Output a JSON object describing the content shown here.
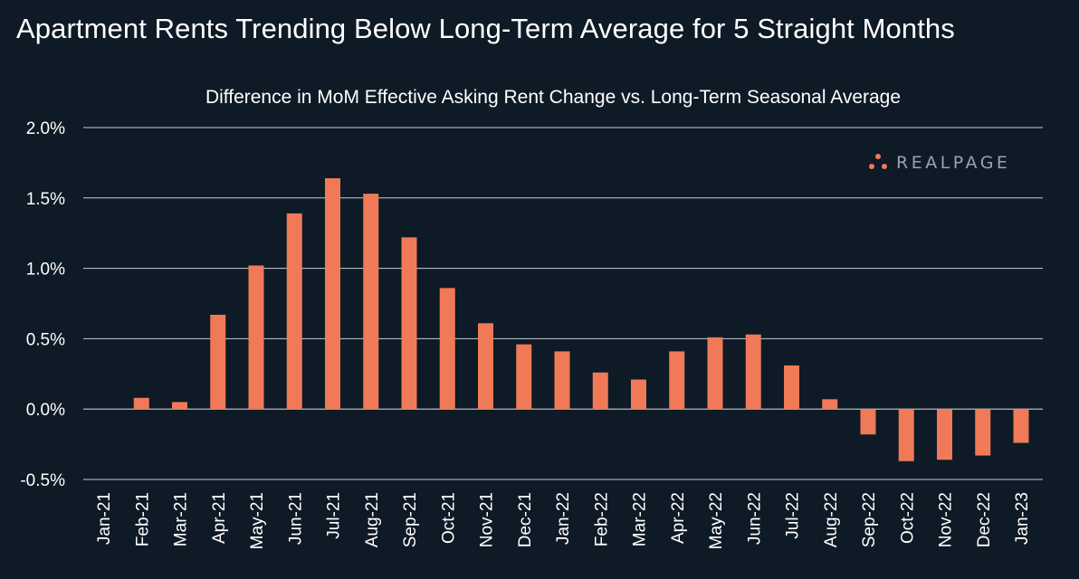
{
  "title": "Apartment Rents Trending Below Long-Term Average for 5 Straight Months",
  "subtitle": "Difference in MoM Effective Asking Rent Change vs. Long-Term Seasonal Average",
  "logo": {
    "text": "REALPAGE",
    "icon": "three-dot-triangle-icon",
    "color": "#f07a57"
  },
  "colors": {
    "background": "#0e1a26",
    "bar": "#f07a57",
    "grid": "#c9ced3",
    "text": "#ffffff"
  },
  "chart_data": {
    "type": "bar",
    "title": "Apartment Rents Trending Below Long-Term Average for 5 Straight Months",
    "subtitle": "Difference in MoM Effective Asking Rent Change vs. Long-Term Seasonal Average",
    "xlabel": "",
    "ylabel": "",
    "ylim": [
      -0.5,
      2.0
    ],
    "y_ticks": [
      2.0,
      1.5,
      1.0,
      0.5,
      0.0,
      -0.5
    ],
    "y_tick_labels": [
      "2.0%",
      "1.5%",
      "1.0%",
      "0.5%",
      "0.0%",
      "-0.5%"
    ],
    "grid": true,
    "legend": "none",
    "categories": [
      "Jan-21",
      "Feb-21",
      "Mar-21",
      "Apr-21",
      "May-21",
      "Jun-21",
      "Jul-21",
      "Aug-21",
      "Sep-21",
      "Oct-21",
      "Nov-21",
      "Dec-21",
      "Jan-22",
      "Feb-22",
      "Mar-22",
      "Apr-22",
      "May-22",
      "Jun-22",
      "Jul-22",
      "Aug-22",
      "Sep-22",
      "Oct-22",
      "Nov-22",
      "Dec-22",
      "Jan-23"
    ],
    "values": [
      0.0,
      0.08,
      0.05,
      0.67,
      1.02,
      1.39,
      1.64,
      1.53,
      1.22,
      0.86,
      0.61,
      0.46,
      0.41,
      0.26,
      0.21,
      0.41,
      0.51,
      0.53,
      0.31,
      0.07,
      -0.18,
      -0.37,
      -0.36,
      -0.33,
      -0.24
    ]
  }
}
